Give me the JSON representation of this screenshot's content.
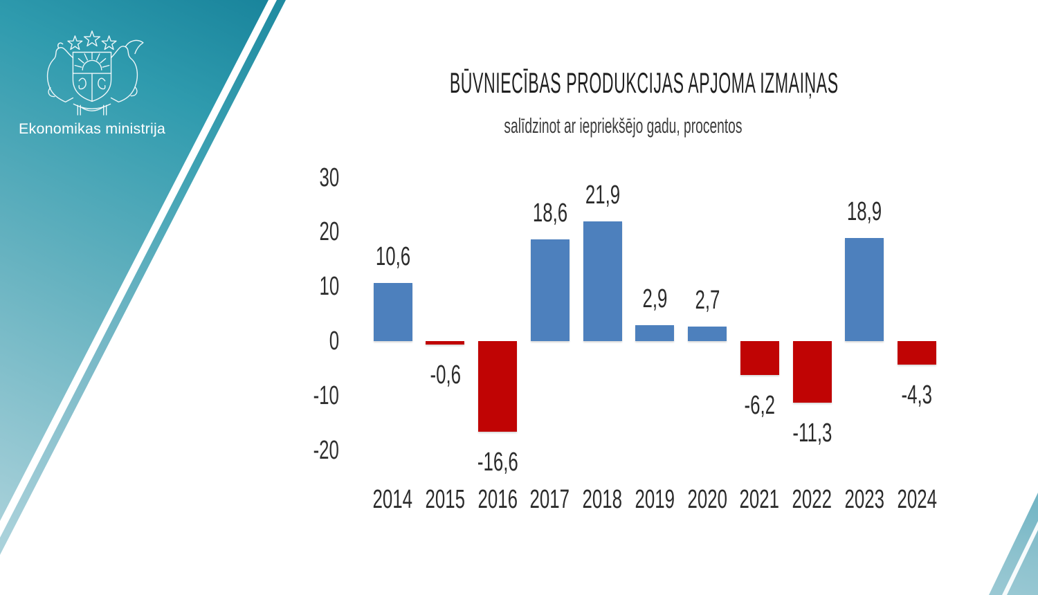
{
  "brand": {
    "logo_label": "Ekonomikas ministrija",
    "banner_teal_dark": "#17829a",
    "banner_teal_light": "#a9d1da",
    "corner_teal": "#8dc2ce"
  },
  "chart_data": {
    "type": "bar",
    "title": "BŪVNIECĪBAS PRODUKCIJAS APJOMA IZMAIŅAS",
    "subtitle": "salīdzinot ar iepriekšējo gadu, procentos",
    "categories": [
      "2014",
      "2015",
      "2016",
      "2017",
      "2018",
      "2019",
      "2020",
      "2021",
      "2022",
      "2023",
      "2024"
    ],
    "values": [
      10.6,
      -0.6,
      -16.6,
      18.6,
      21.9,
      2.9,
      2.7,
      -6.2,
      -11.3,
      18.9,
      -4.3
    ],
    "labels": [
      "10,6",
      "-0,6",
      "-16,6",
      "18,6",
      "21,9",
      "2,9",
      "2,7",
      "-6,2",
      "-11,3",
      "18,9",
      "-4,3"
    ],
    "y_ticks": [
      30,
      20,
      10,
      0,
      -10,
      -20
    ],
    "ylim": [
      -25,
      32
    ],
    "positive_color": "#4d80bd",
    "negative_color": "#c00404",
    "grid": false,
    "legend": false,
    "xlabel": "",
    "ylabel": ""
  }
}
